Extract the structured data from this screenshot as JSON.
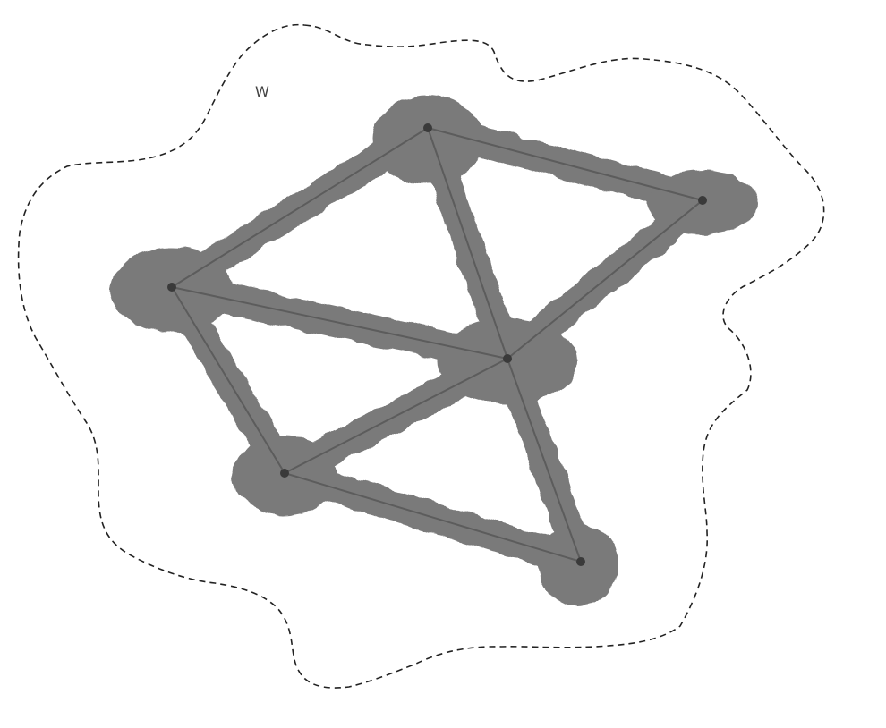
{
  "region": {
    "label": "W",
    "stroke_color": "#222222"
  },
  "style": {
    "blob_color": "#7a7a7a",
    "edge_color": "#5c5c5c",
    "vertex_color": "#3a3a3a"
  },
  "graph": {
    "vertices": [
      "v1",
      "v2",
      "v3",
      "v4",
      "v5",
      "v6"
    ],
    "edges": [
      [
        "v1",
        "v2"
      ],
      [
        "v1",
        "v3"
      ],
      [
        "v1",
        "v4"
      ],
      [
        "v2",
        "v4"
      ],
      [
        "v3",
        "v4"
      ],
      [
        "v3",
        "v5"
      ],
      [
        "v4",
        "v5"
      ],
      [
        "v4",
        "v6"
      ],
      [
        "v5",
        "v6"
      ]
    ]
  }
}
